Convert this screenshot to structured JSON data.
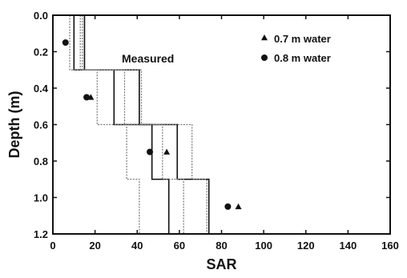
{
  "chart_data": {
    "type": "scatter",
    "title": "",
    "xlabel": "SAR",
    "ylabel": "Depth (m)",
    "xlim": [
      0,
      160
    ],
    "ylim": [
      1.2,
      0.0
    ],
    "x_ticks": [
      "0",
      "20",
      "40",
      "60",
      "80",
      "100",
      "120",
      "140",
      "160"
    ],
    "y_ticks": [
      "0.0",
      "0.2",
      "0.4",
      "0.6",
      "0.8",
      "1.0",
      "1.2"
    ],
    "x_tick_values": [
      0,
      20,
      40,
      60,
      80,
      100,
      120,
      140,
      160
    ],
    "y_tick_values": [
      0.0,
      0.2,
      0.4,
      0.6,
      0.8,
      1.0,
      1.2
    ],
    "annotation": "Measured",
    "legend_position": "top-right",
    "series": [
      {
        "name": "0.7 m water",
        "marker": "triangle",
        "points": [
          {
            "x": 18,
            "y": 0.45
          },
          {
            "x": 54,
            "y": 0.75
          },
          {
            "x": 88,
            "y": 1.05
          }
        ]
      },
      {
        "name": "0.8 m water",
        "marker": "circle",
        "points": [
          {
            "x": 6,
            "y": 0.15
          },
          {
            "x": 16,
            "y": 0.45
          },
          {
            "x": 46,
            "y": 0.75
          },
          {
            "x": 83,
            "y": 1.05
          }
        ]
      }
    ],
    "step_profiles": [
      {
        "style": "solid",
        "x": [
          10,
          10,
          29,
          29,
          47,
          47,
          55,
          55
        ],
        "y": [
          0.0,
          0.3,
          0.3,
          0.6,
          0.6,
          0.9,
          0.9,
          1.2
        ]
      },
      {
        "style": "solid",
        "x": [
          15,
          15,
          41,
          41,
          59,
          59,
          74,
          74
        ],
        "y": [
          0.0,
          0.3,
          0.3,
          0.6,
          0.6,
          0.9,
          0.9,
          1.2
        ]
      },
      {
        "style": "dotted",
        "x": [
          8,
          8,
          21,
          21,
          35,
          35,
          41,
          41
        ],
        "y": [
          0.0,
          0.3,
          0.3,
          0.6,
          0.6,
          0.9,
          0.9,
          1.2
        ]
      },
      {
        "style": "dotted",
        "x": [
          13,
          13,
          34,
          34,
          52,
          52,
          62,
          62
        ],
        "y": [
          0.0,
          0.3,
          0.3,
          0.6,
          0.6,
          0.9,
          0.9,
          1.2
        ]
      },
      {
        "style": "dotted",
        "x": [
          14,
          14,
          42,
          42,
          66,
          66,
          73,
          73
        ],
        "y": [
          0.0,
          0.3,
          0.3,
          0.6,
          0.6,
          0.9,
          0.9,
          1.2
        ]
      }
    ],
    "grid": false
  }
}
